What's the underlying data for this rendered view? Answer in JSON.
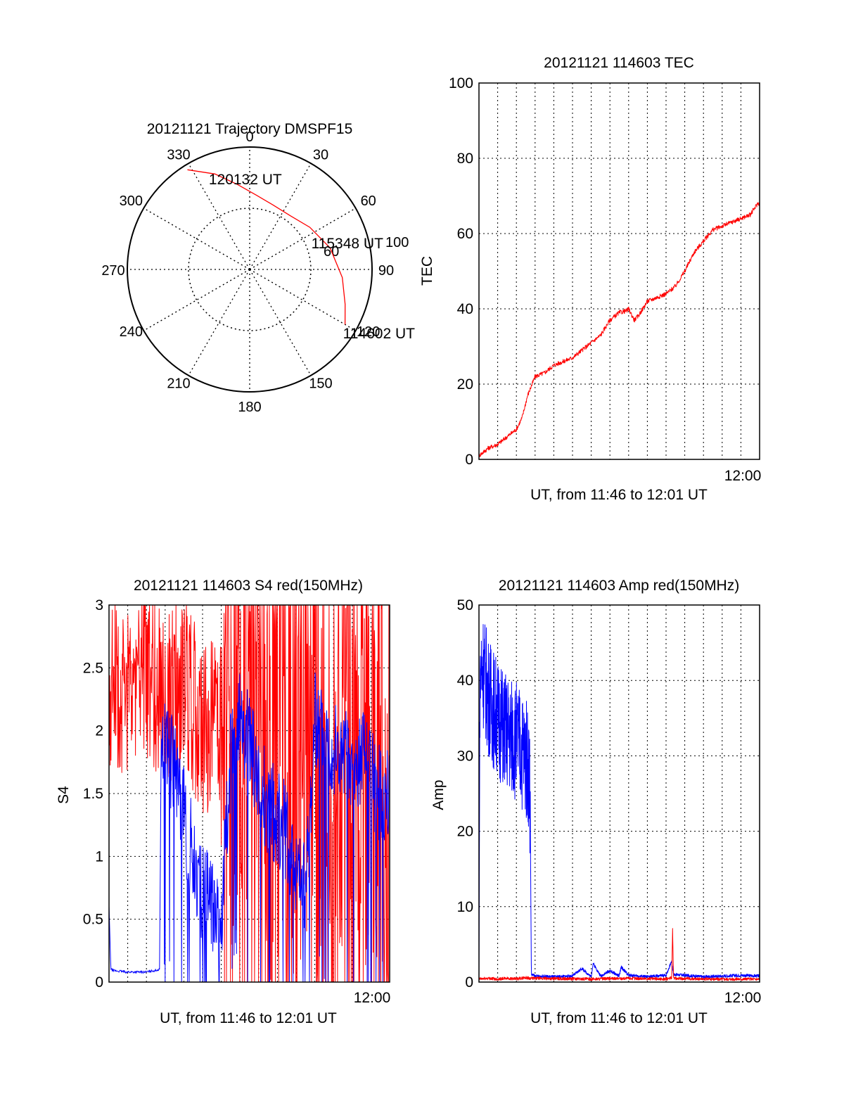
{
  "colors": {
    "red": "#ff0000",
    "blue": "#0000ff",
    "axis": "#000000",
    "grid": "#000000"
  },
  "chart_data": [
    {
      "id": "trajectory",
      "type": "polar",
      "title": "20121121 Trajectory DMSPF15",
      "angle_labels": [
        "0",
        "30",
        "60",
        "90",
        "120",
        "150",
        "180",
        "210",
        "240",
        "270",
        "300",
        "330"
      ],
      "radius_labels": [
        "60",
        "100"
      ],
      "rlim": [
        0,
        100
      ],
      "grid": true,
      "series": [
        {
          "color": "red",
          "points": [
            [
              328,
              96
            ],
            [
              340,
              83
            ],
            [
              352,
              70
            ],
            [
              5,
              61
            ],
            [
              20,
              56
            ],
            [
              37,
              55
            ],
            [
              55,
              60
            ],
            [
              75,
              68
            ],
            [
              95,
              76
            ],
            [
              110,
              83
            ],
            [
              120,
              90
            ]
          ]
        }
      ],
      "annotations": [
        {
          "text": "120132 UT",
          "angle": 338,
          "r": 80
        },
        {
          "text": "115348 UT",
          "angle": 68,
          "r": 58
        },
        {
          "text": "114602 UT",
          "angle": 123,
          "r": 95
        }
      ]
    },
    {
      "id": "tec",
      "type": "line",
      "title": "20121121 114603 TEC",
      "xlabel": "UT, from 11:46 to 12:01 UT",
      "ylabel": "TEC",
      "xlim": [
        0,
        15
      ],
      "ylim": [
        0,
        100
      ],
      "yticks": [
        "0",
        "20",
        "40",
        "60",
        "80",
        "100"
      ],
      "xtick_label": "12:00",
      "xtick_at": 14,
      "grid": true,
      "series": [
        {
          "color": "red",
          "x": [
            0,
            0.5,
            1,
            1.5,
            2,
            2.3,
            2.6,
            3,
            3.5,
            4,
            4.5,
            5,
            5.5,
            6,
            6.5,
            7,
            7.5,
            7.9,
            8,
            8.3,
            8.5,
            9,
            9.5,
            10,
            10.5,
            11,
            11.5,
            12,
            12.5,
            13,
            13.5,
            14,
            14.5,
            14.9
          ],
          "y": [
            1,
            3,
            4,
            6,
            8,
            11,
            17,
            22,
            23,
            25,
            26,
            27,
            29,
            31,
            33,
            37,
            39,
            39.5,
            40,
            37,
            38,
            42,
            43,
            44,
            46,
            50,
            55,
            58,
            61,
            62,
            63,
            64,
            65,
            68
          ]
        }
      ]
    },
    {
      "id": "s4",
      "type": "line",
      "title": "20121121 114603 S4 red(150MHz)",
      "xlabel": "UT, from 11:46 to 12:01 UT",
      "ylabel": "S4",
      "xlim": [
        0,
        15
      ],
      "ylim": [
        0,
        3
      ],
      "yticks": [
        "0",
        "0.5",
        "1",
        "1.5",
        "2",
        "2.5",
        "3"
      ],
      "xtick_label": "12:00",
      "xtick_at": 14,
      "grid": true,
      "series": [
        {
          "name": "",
          "color": "red",
          "x": [
            0,
            1,
            2,
            3,
            4,
            5,
            6,
            7,
            8,
            9,
            10,
            11,
            12,
            13,
            14,
            15
          ],
          "y": [
            2.4,
            2.3,
            2.5,
            2.2,
            2.4,
            2.0,
            2.1,
            2.3,
            1.9,
            2.0,
            1.8,
            1.6,
            1.5,
            1.4,
            1.5,
            1.4
          ]
        },
        {
          "name": "",
          "color": "blue",
          "x": [
            0,
            0.1,
            0.3,
            1,
            2,
            2.7,
            2.8,
            3,
            3.5,
            4,
            4.5,
            5,
            5.5,
            6,
            6.5,
            7,
            7.5,
            8,
            8.5,
            9,
            9.5,
            10,
            10.5,
            11,
            11.5,
            12,
            12.5,
            13,
            13.5,
            14,
            14.5,
            15
          ],
          "y": [
            0.6,
            0.1,
            0.09,
            0.08,
            0.08,
            0.1,
            2.1,
            1.9,
            1.7,
            1.3,
            1.0,
            0.7,
            0.6,
            0.5,
            1.8,
            2.1,
            1.9,
            1.6,
            1.4,
            1.3,
            1.2,
            0.9,
            0.7,
            2.1,
            2.0,
            1.9,
            1.8,
            1.7,
            1.8,
            1.6,
            1.5,
            1.5
          ]
        }
      ]
    },
    {
      "id": "amp",
      "type": "line",
      "title": "20121121 114603 Amp red(150MHz)",
      "xlabel": "UT, from 11:46 to 12:01 UT",
      "ylabel": "Amp",
      "xlim": [
        0,
        15
      ],
      "ylim": [
        0,
        50
      ],
      "yticks": [
        "0",
        "10",
        "20",
        "30",
        "40",
        "50"
      ],
      "xtick_label": "12:00",
      "xtick_at": 14,
      "grid": true,
      "series": [
        {
          "name": "",
          "color": "blue",
          "x": [
            0,
            0.05,
            0.2,
            0.5,
            1,
            1.5,
            2,
            2.5,
            2.7,
            2.75,
            2.8,
            3,
            4,
            5,
            5.5,
            6,
            6.1,
            6.5,
            7,
            7.5,
            7.6,
            8,
            8.5,
            9,
            10,
            10.3,
            10.4,
            11,
            12,
            13,
            14,
            15
          ],
          "y": [
            0,
            40,
            42,
            38,
            35,
            33,
            32,
            30,
            28,
            20,
            1,
            0.8,
            0.7,
            0.8,
            1.8,
            0.7,
            2.5,
            0.8,
            1.5,
            0.8,
            2,
            0.9,
            0.8,
            0.7,
            0.9,
            2.8,
            1.0,
            0.9,
            0.7,
            0.8,
            0.9,
            0.8
          ]
        },
        {
          "name": "",
          "color": "red",
          "x": [
            0,
            0.5,
            1,
            1.5,
            2,
            2.5,
            2.7,
            6,
            8,
            10,
            10.3,
            10.35,
            10.4,
            12,
            15
          ],
          "y": [
            0.4,
            0.5,
            0.4,
            0.5,
            0.4,
            0.6,
            0.5,
            0.4,
            0.5,
            0.4,
            0.6,
            7,
            0.5,
            0.4,
            0.4
          ]
        }
      ]
    }
  ]
}
